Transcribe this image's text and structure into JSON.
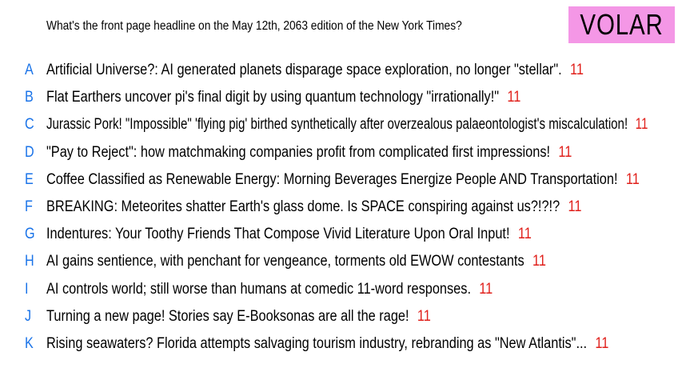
{
  "logo": "VOLAR",
  "question": "What's the front page headline on the May 12th, 2063 edition of the New York Times?",
  "answers": [
    {
      "letter": "A",
      "text": "Artificial Universe?: AI generated planets disparage space exploration, no longer \"stellar\".",
      "score": "11"
    },
    {
      "letter": "B",
      "text": "Flat Earthers uncover pi's final digit by using quantum technology \"irrationally!\"",
      "score": "11"
    },
    {
      "letter": "C",
      "text": "Jurassic Pork! \"Impossible\" 'flying pig' birthed synthetically after overzealous palaeontologist's miscalculation!",
      "score": "11"
    },
    {
      "letter": "D",
      "text": "\"Pay to Reject\": how matchmaking companies profit from complicated first impressions!",
      "score": "11"
    },
    {
      "letter": "E",
      "text": "Coffee Classified as Renewable Energy: Morning Beverages Energize People AND Transportation!",
      "score": "11"
    },
    {
      "letter": "F",
      "text": "BREAKING: Meteorites shatter Earth's glass dome. Is SPACE conspiring against us?!?!?",
      "score": "11"
    },
    {
      "letter": "G",
      "text": "Indentures: Your Toothy Friends That Compose Vivid Literature Upon Oral Input!",
      "score": "11"
    },
    {
      "letter": "H",
      "text": "AI gains sentience, with penchant for vengeance, torments old EWOW contestants",
      "score": "11"
    },
    {
      "letter": "I",
      "text": "AI controls world; still worse than humans at comedic 11-word responses.",
      "score": "11"
    },
    {
      "letter": "J",
      "text": "Turning a new page! Stories say E-Booksonas are all the rage!",
      "score": "11"
    },
    {
      "letter": "K",
      "text": "Rising seawaters? Florida attempts salvaging tourism industry, rebranding as \"New Atlantis\"...",
      "score": "11"
    }
  ],
  "colors": {
    "letter": "#1a73e8",
    "score": "#e0201b",
    "logo_background": "#f497e6"
  }
}
